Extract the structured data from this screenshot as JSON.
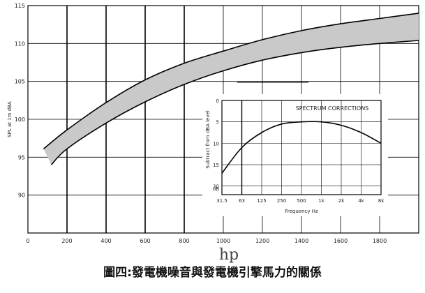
{
  "caption": "圖四:發電機噪音與發電機引擎馬力的關係",
  "chart_data": [
    {
      "type": "area",
      "ylabel": "SPL at 1m dBA",
      "xlabel": "hp",
      "xlim": [
        0,
        2000
      ],
      "ylim": [
        85,
        115
      ],
      "x_ticks": [
        "0",
        "200",
        "400",
        "600",
        "800",
        "1000",
        "1200",
        "1400",
        "1600",
        "1800"
      ],
      "y_ticks": [
        "115",
        "110",
        "105",
        "100",
        "95",
        "90"
      ],
      "grid": true,
      "band": {
        "upper": [
          [
            80,
            96.1
          ],
          [
            200,
            98.6
          ],
          [
            400,
            102.2
          ],
          [
            600,
            105.2
          ],
          [
            800,
            107.4
          ],
          [
            1000,
            109.0
          ],
          [
            1200,
            110.5
          ],
          [
            1400,
            111.7
          ],
          [
            1600,
            112.6
          ],
          [
            1800,
            113.3
          ],
          [
            2000,
            114.0
          ]
        ],
        "lower": [
          [
            120,
            94.0
          ],
          [
            200,
            96.1
          ],
          [
            400,
            99.5
          ],
          [
            600,
            102.3
          ],
          [
            800,
            104.6
          ],
          [
            1000,
            106.4
          ],
          [
            1200,
            107.8
          ],
          [
            1400,
            108.8
          ],
          [
            1600,
            109.5
          ],
          [
            1800,
            110.0
          ],
          [
            2000,
            110.4
          ]
        ]
      }
    },
    {
      "type": "line",
      "title": "SPECTRUM CORRECTIONS",
      "xlabel": "Frequency Hz",
      "ylabel": "Subtract from dBA level",
      "y_unit": "dB",
      "categories": [
        "31.5",
        "63",
        "125",
        "250",
        "500",
        "1k",
        "2k",
        "4k",
        "8k"
      ],
      "y_ticks": [
        "0",
        "5",
        "10",
        "15",
        "20"
      ],
      "ylim": [
        0,
        22
      ],
      "y_inverted": true,
      "values": [
        17,
        11,
        7.5,
        5.5,
        5,
        5,
        5.8,
        7.5,
        10
      ]
    }
  ]
}
